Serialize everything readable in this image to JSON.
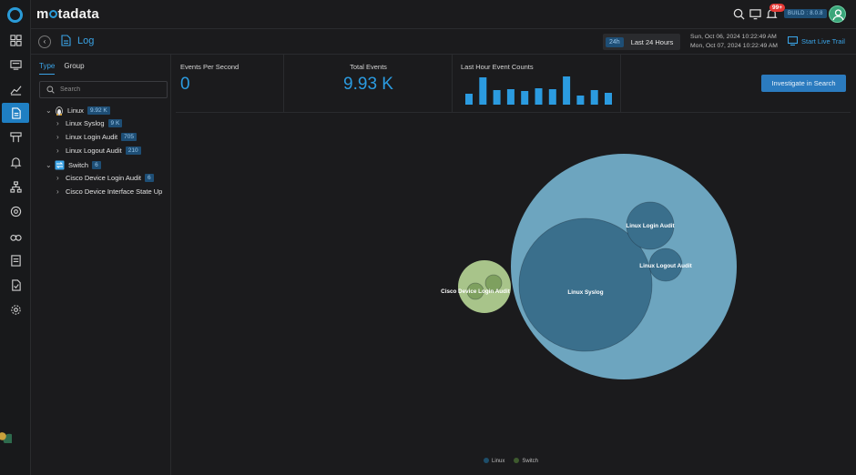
{
  "app": {
    "brand": "motadata"
  },
  "topbar": {
    "notif_count": "99+",
    "build": "BUILD : 8.0.8"
  },
  "page": {
    "title": "Log"
  },
  "timerange": {
    "pill": "24h",
    "label": "Last 24 Hours",
    "from": "Sun, Oct 06, 2024 10:22:49 AM",
    "to": "Mon, Oct 07, 2024 10:22:49 AM"
  },
  "live_trail": "Start Live Trail",
  "side": {
    "tabs": [
      "Type",
      "Group"
    ],
    "search_placeholder": "Search",
    "tree": [
      {
        "label": "Linux",
        "count": "9.92 K",
        "level": 0,
        "expanded": true,
        "icon": "linux-icon"
      },
      {
        "label": "Linux Syslog",
        "count": "9 K",
        "level": 1
      },
      {
        "label": "Linux Login Audit",
        "count": "705",
        "level": 1
      },
      {
        "label": "Linux Logout Audit",
        "count": "210",
        "level": 1
      },
      {
        "label": "Switch",
        "count": "6",
        "level": 0,
        "expanded": true,
        "icon": "switch-icon"
      },
      {
        "label": "Cisco Device Login Audit",
        "count": "6",
        "level": 1
      },
      {
        "label": "Cisco Device Interface State Up",
        "count": "",
        "level": 1
      }
    ]
  },
  "stats": {
    "eps_label": "Events Per Second",
    "eps_value": "0",
    "total_label": "Total Events",
    "total_value": "9.93 K",
    "hourly_label": "Last Hour Event Counts"
  },
  "hourly_counts": [
    12,
    30,
    16,
    17,
    15,
    18,
    17,
    31,
    10,
    16,
    13
  ],
  "investigate_label": "Investigate in Search",
  "colors": {
    "accent": "#2b9be0",
    "linux_outer": "#6da5bf",
    "linux_inner": "#3a6f8c",
    "switch_outer": "#a8c48a",
    "switch_inner": "#7ea05f"
  },
  "chart_data": {
    "type": "bubble",
    "series": [
      {
        "name": "Linux",
        "total": 9920,
        "children": [
          {
            "name": "Linux Syslog",
            "value": 9000
          },
          {
            "name": "Linux Login Audit",
            "value": 705
          },
          {
            "name": "Linux Logout Audit",
            "value": 210
          }
        ]
      },
      {
        "name": "Switch",
        "total": 6,
        "children": [
          {
            "name": "Cisco Device Login Audit",
            "value": 6
          },
          {
            "name": "Cisco Device Interface State Up",
            "value": null
          }
        ]
      }
    ],
    "legend": [
      "Linux",
      "Switch"
    ],
    "legend_placement": "bottom-center"
  }
}
